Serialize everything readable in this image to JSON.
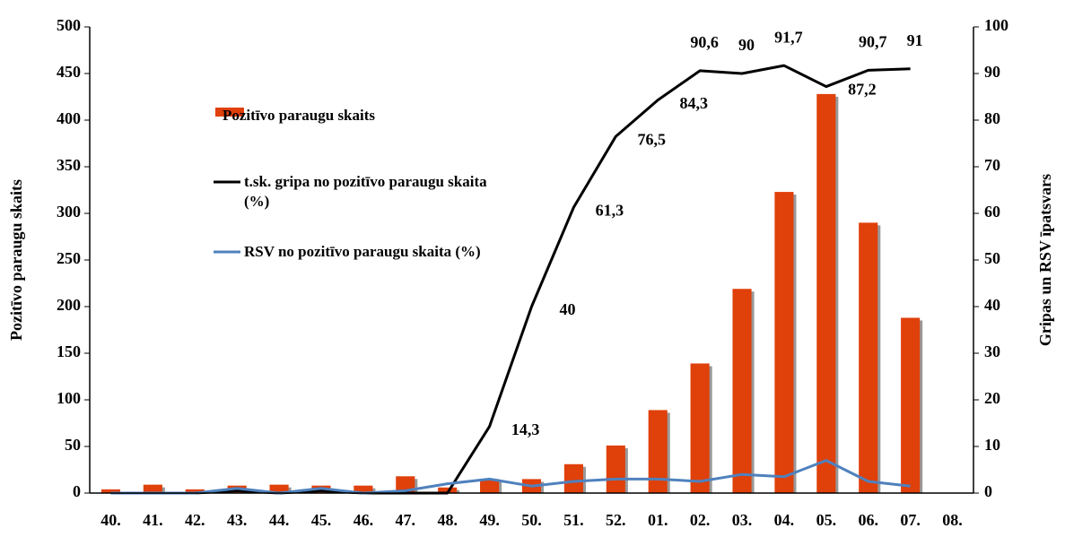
{
  "chart_data": {
    "type": "bar-line",
    "categories": [
      "40.",
      "41.",
      "42.",
      "43.",
      "44.",
      "45.",
      "46.",
      "47.",
      "48.",
      "49.",
      "50.",
      "51.",
      "52.",
      "01.",
      "02.",
      "03.",
      "04.",
      "05.",
      "06.",
      "07.",
      "08."
    ],
    "ylabel": "Pozitīvo  paraugu skaits",
    "y2label": "Gripas un RSV īpatsvars",
    "ylim": [
      0,
      500
    ],
    "yticks": [
      0,
      50,
      100,
      150,
      200,
      250,
      300,
      350,
      400,
      450,
      500
    ],
    "y2lim": [
      0,
      100
    ],
    "y2ticks": [
      0,
      10,
      20,
      30,
      40,
      50,
      60,
      70,
      80,
      90,
      100
    ],
    "series": [
      {
        "name": "Pozitīvo paraugu skaits",
        "type": "bar",
        "color": "#e0400a",
        "values": [
          4,
          9,
          4,
          8,
          9,
          8,
          8,
          18,
          6,
          15,
          15,
          31,
          51,
          89,
          139,
          219,
          323,
          428,
          290,
          188,
          null
        ]
      },
      {
        "name": "t.sk. gripa no pozitīvo paraugu skaita (%)",
        "type": "line",
        "axis": "y2",
        "color": "#000000",
        "values": [
          0,
          0,
          0,
          0.5,
          0,
          0.5,
          0,
          0,
          0,
          14.3,
          40,
          61.3,
          76.5,
          84.3,
          90.6,
          90,
          91.7,
          87.2,
          90.7,
          91,
          null
        ],
        "value_labels": [
          null,
          null,
          null,
          null,
          null,
          null,
          null,
          null,
          null,
          "14,3",
          "40",
          "61,3",
          "76,5",
          "84,3",
          "90,6",
          "90",
          "91,7",
          "87,2",
          "90,7",
          "91",
          null
        ]
      },
      {
        "name": "RSV no pozitīvo paraugu skaita (%)",
        "type": "line",
        "axis": "y2",
        "color": "#4f81bd",
        "values": [
          0,
          0,
          0,
          1,
          0,
          1,
          0,
          0.5,
          2,
          3,
          1.5,
          2.5,
          3,
          3,
          2.5,
          4,
          3.5,
          7,
          2.5,
          1.5,
          null
        ]
      }
    ]
  }
}
